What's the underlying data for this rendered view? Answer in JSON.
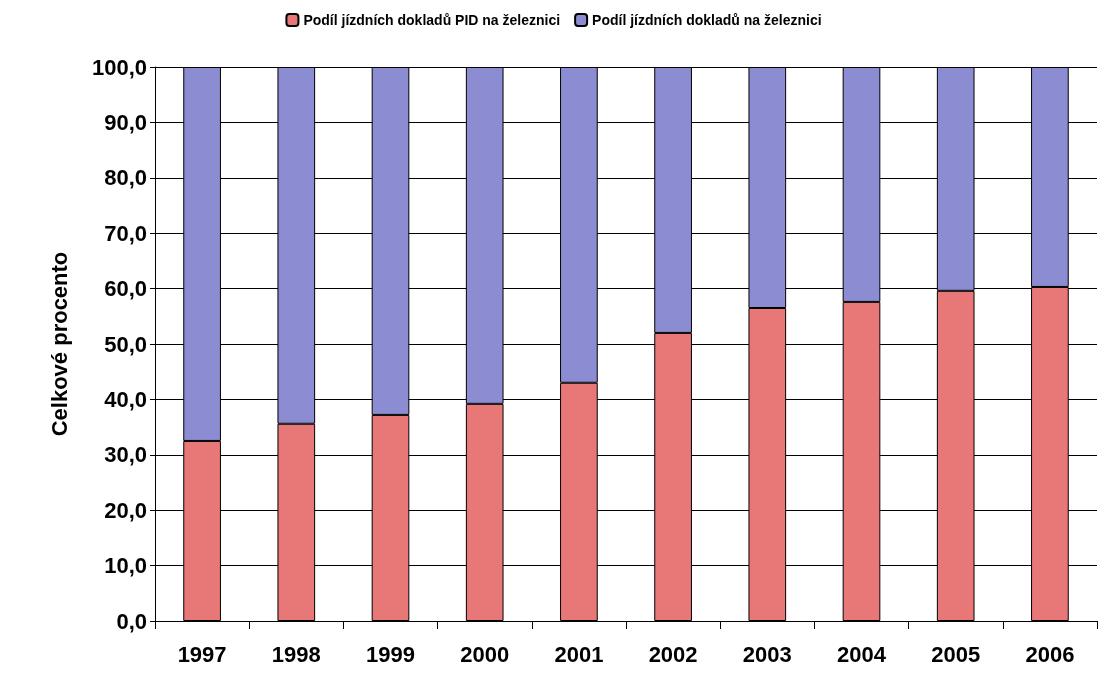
{
  "chart_data": {
    "type": "bar",
    "stacked": true,
    "ylabel": "Celkové procento",
    "categories": [
      "1997",
      "1998",
      "1999",
      "2000",
      "2001",
      "2002",
      "2003",
      "2004",
      "2005",
      "2006"
    ],
    "series": [
      {
        "name": "Podíl jízdních dokladů PID na železnici",
        "color": "#e87878",
        "values": [
          32.5,
          35.6,
          37.2,
          39.2,
          43.0,
          52.0,
          56.5,
          57.6,
          59.6,
          60.3
        ]
      },
      {
        "name": "Podíl jízdních dokladů na železnici",
        "color": "#8c8cd2",
        "values": [
          67.5,
          64.4,
          62.8,
          60.8,
          57.0,
          48.0,
          43.5,
          42.4,
          40.4,
          39.7
        ]
      }
    ],
    "ylim": [
      0,
      100
    ],
    "yticks": [
      {
        "value": 0,
        "label": "0,0"
      },
      {
        "value": 10,
        "label": "10,0"
      },
      {
        "value": 20,
        "label": "20,0"
      },
      {
        "value": 30,
        "label": "30,0"
      },
      {
        "value": 40,
        "label": "40,0"
      },
      {
        "value": 50,
        "label": "50,0"
      },
      {
        "value": 60,
        "label": "60,0"
      },
      {
        "value": 70,
        "label": "70,0"
      },
      {
        "value": 80,
        "label": "80,0"
      },
      {
        "value": 90,
        "label": "90,0"
      },
      {
        "value": 100,
        "label": "100,0"
      }
    ],
    "grid": "y",
    "legend": "top"
  }
}
